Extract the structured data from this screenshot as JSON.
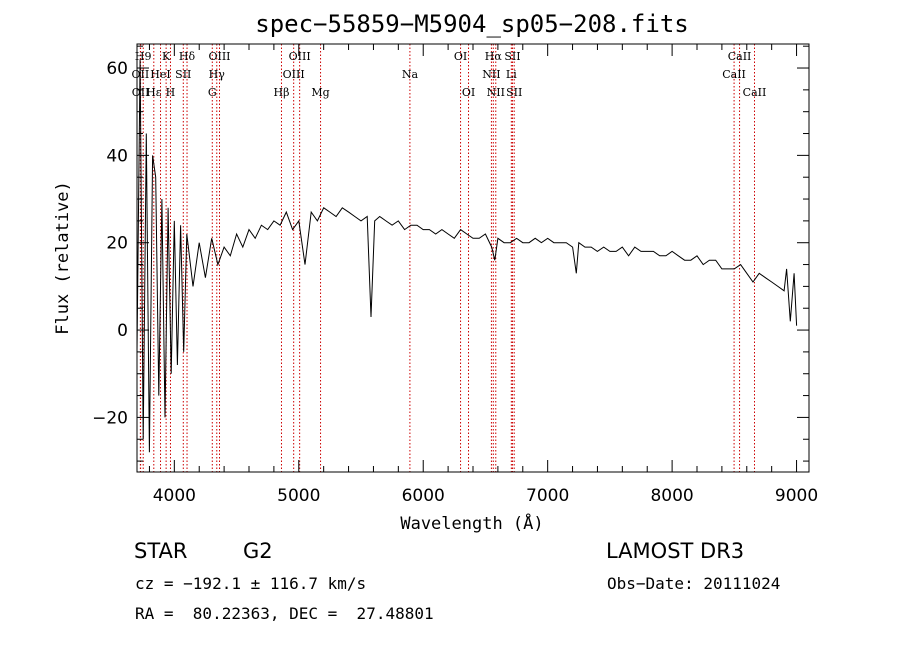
{
  "chart_data": {
    "type": "line",
    "title": "spec−55859−M5904_sp05−208.fits",
    "xlabel": "Wavelength (Å)",
    "ylabel": "Flux (relative)",
    "xlim": [
      3700,
      9100
    ],
    "ylim": [
      -32.5,
      65.5
    ],
    "x_ticks": [
      4000,
      5000,
      6000,
      7000,
      8000,
      9000
    ],
    "x_tick_labels": [
      "4000",
      "5000",
      "6000",
      "7000",
      "8000",
      "9000"
    ],
    "y_ticks": [
      -20,
      0,
      20,
      40,
      60
    ],
    "y_tick_labels": [
      "−20",
      "0",
      "20",
      "40",
      "60"
    ],
    "x_minor_step": 200,
    "y_minor_step": 5,
    "series": [
      {
        "name": "flux",
        "x": [
          3700,
          3725,
          3750,
          3775,
          3800,
          3825,
          3850,
          3875,
          3900,
          3925,
          3950,
          3975,
          4000,
          4025,
          4050,
          4075,
          4100,
          4150,
          4200,
          4250,
          4300,
          4350,
          4400,
          4450,
          4500,
          4550,
          4600,
          4650,
          4700,
          4750,
          4800,
          4850,
          4900,
          4950,
          5000,
          5050,
          5100,
          5150,
          5200,
          5250,
          5300,
          5350,
          5400,
          5450,
          5500,
          5550,
          5580,
          5610,
          5650,
          5700,
          5750,
          5800,
          5850,
          5900,
          5950,
          6000,
          6050,
          6100,
          6150,
          6200,
          6250,
          6300,
          6350,
          6400,
          6450,
          6500,
          6550,
          6575,
          6600,
          6650,
          6700,
          6750,
          6800,
          6850,
          6900,
          6950,
          7000,
          7050,
          7100,
          7150,
          7200,
          7230,
          7250,
          7300,
          7350,
          7400,
          7450,
          7500,
          7550,
          7600,
          7650,
          7700,
          7750,
          7800,
          7850,
          7900,
          7950,
          8000,
          8050,
          8100,
          8150,
          8200,
          8250,
          8300,
          8350,
          8400,
          8450,
          8500,
          8550,
          8600,
          8650,
          8700,
          8750,
          8800,
          8850,
          8900,
          8920,
          8950,
          8980,
          9000
        ],
        "y": [
          -5,
          62,
          -25,
          45,
          -28,
          40,
          35,
          -15,
          30,
          -20,
          28,
          -10,
          25,
          -8,
          24,
          -5,
          22,
          10,
          20,
          12,
          21,
          15,
          19,
          17,
          22,
          19,
          23,
          21,
          24,
          23,
          25,
          24,
          27,
          23,
          25,
          15,
          27,
          25,
          28,
          27,
          26,
          28,
          27,
          26,
          25,
          26,
          3,
          25,
          26,
          25,
          24,
          25,
          23,
          24,
          24,
          23,
          23,
          22,
          23,
          22,
          21,
          23,
          22,
          21,
          21,
          22,
          19,
          16,
          21,
          20,
          20,
          21,
          20,
          20,
          21,
          20,
          21,
          20,
          20,
          20,
          19,
          13,
          20,
          19,
          19,
          18,
          19,
          18,
          18,
          19,
          17,
          19,
          18,
          18,
          18,
          17,
          17,
          18,
          17,
          16,
          16,
          17,
          15,
          16,
          16,
          14,
          14,
          14,
          15,
          13,
          11,
          13,
          12,
          11,
          10,
          9,
          14,
          2,
          13,
          1
        ]
      }
    ],
    "lines": [
      {
        "name": "OII",
        "x": 3727
      },
      {
        "name": "H9",
        "x": 3750
      },
      {
        "name": "OII",
        "x": 3729
      },
      {
        "name": "Hε",
        "x": 3835
      },
      {
        "name": "K",
        "x": 3934
      },
      {
        "name": "HeI",
        "x": 3889
      },
      {
        "name": "H",
        "x": 3969
      },
      {
        "name": "Hδ",
        "x": 4102
      },
      {
        "name": "SII",
        "x": 4072
      },
      {
        "name": "OIII",
        "x": 4363
      },
      {
        "name": "Hγ",
        "x": 4341
      },
      {
        "name": "G",
        "x": 4305
      },
      {
        "name": "Hβ",
        "x": 4861
      },
      {
        "name": "OIII",
        "x": 5007
      },
      {
        "name": "OIII",
        "x": 4959
      },
      {
        "name": "Mg",
        "x": 5175
      },
      {
        "name": "Na",
        "x": 5893
      },
      {
        "name": "OI",
        "x": 6300
      },
      {
        "name": "OI",
        "x": 6364
      },
      {
        "name": "Hα",
        "x": 6563
      },
      {
        "name": "NII",
        "x": 6548
      },
      {
        "name": "NII",
        "x": 6583
      },
      {
        "name": "SII",
        "x": 6717
      },
      {
        "name": "Li",
        "x": 6708
      },
      {
        "name": "SII",
        "x": 6731
      },
      {
        "name": "CaII",
        "x": 8542
      },
      {
        "name": "CaII",
        "x": 8498
      },
      {
        "name": "CaII",
        "x": 8662
      }
    ],
    "line_labels": [
      {
        "text": "H9",
        "row": 1,
        "x": 3750
      },
      {
        "text": "K",
        "row": 1,
        "x": 3934
      },
      {
        "text": "Hδ",
        "row": 1,
        "x": 4102
      },
      {
        "text": "OIII",
        "row": 1,
        "x": 4363
      },
      {
        "text": "OIII",
        "row": 1,
        "x": 5007
      },
      {
        "text": "OI",
        "row": 1,
        "x": 6300
      },
      {
        "text": "Hα",
        "row": 1,
        "x": 6563
      },
      {
        "text": "SII",
        "row": 1,
        "x": 6717
      },
      {
        "text": "CaII",
        "row": 1,
        "x": 8542
      },
      {
        "text": "OII",
        "row": 2,
        "x": 3727
      },
      {
        "text": "HeI",
        "row": 2,
        "x": 3889
      },
      {
        "text": "SII",
        "row": 2,
        "x": 4072
      },
      {
        "text": "Hγ",
        "row": 2,
        "x": 4341
      },
      {
        "text": "OIII",
        "row": 2,
        "x": 4959
      },
      {
        "text": "Na",
        "row": 2,
        "x": 5893
      },
      {
        "text": "NII",
        "row": 2,
        "x": 6548
      },
      {
        "text": "Li",
        "row": 2,
        "x": 6708
      },
      {
        "text": "CaII",
        "row": 2,
        "x": 8498
      },
      {
        "text": "OII",
        "row": 3,
        "x": 3729
      },
      {
        "text": "Hε",
        "row": 3,
        "x": 3835
      },
      {
        "text": "H",
        "row": 3,
        "x": 3969
      },
      {
        "text": "G",
        "row": 3,
        "x": 4305
      },
      {
        "text": "Hβ",
        "row": 3,
        "x": 4861
      },
      {
        "text": "Mg",
        "row": 3,
        "x": 5175
      },
      {
        "text": "OI",
        "row": 3,
        "x": 6364
      },
      {
        "text": "NII",
        "row": 3,
        "x": 6583
      },
      {
        "text": "SII",
        "row": 3,
        "x": 6731
      },
      {
        "text": "CaII",
        "row": 3,
        "x": 8662
      }
    ],
    "colors": {
      "spectrum": "#000000",
      "lines": "#cc0000",
      "axes": "#000000"
    }
  },
  "footer": {
    "object_class": "STAR",
    "subclass": "G2",
    "survey": "LAMOST DR3",
    "redshift": "cz = −192.1 ± 116.7 km/s",
    "obs_date": "Obs−Date: 20111024",
    "coords": "RA =  80.22363, DEC =  27.48801"
  }
}
